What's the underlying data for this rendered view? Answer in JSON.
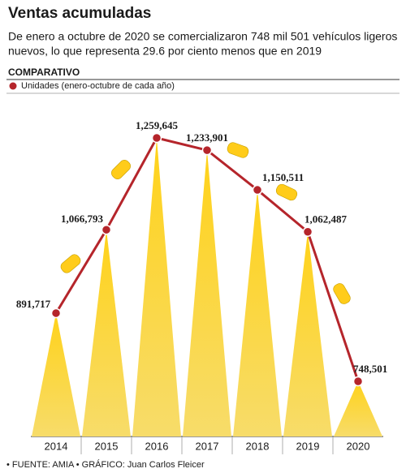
{
  "chart_data": {
    "type": "line",
    "title": "Ventas acumuladas",
    "subtitle": [
      "De enero a octubre de 2020 se comercializaron 748 mil 501 vehículos ligeros",
      "nuevos, lo que representa 29.6 por ciento menos que en 2019"
    ],
    "section": "COMPARATIVO",
    "categories": [
      "2014",
      "2015",
      "2016",
      "2017",
      "2018",
      "2019",
      "2020"
    ],
    "series": [
      {
        "name": "Unidades (enero-octubre de cada año)",
        "color": "#b5252b",
        "values": [
          891717,
          1066793,
          1259645,
          1233901,
          1150511,
          1062487,
          748501
        ],
        "value_labels": [
          "891,717",
          "1,066,793",
          "1,259,645",
          "1,233,901",
          "1,150,511",
          "1,062,487",
          "748,501"
        ]
      }
    ],
    "source": "• FUENTE: AMIA • GRÁFICO: Juan Carlos Fleicer"
  }
}
